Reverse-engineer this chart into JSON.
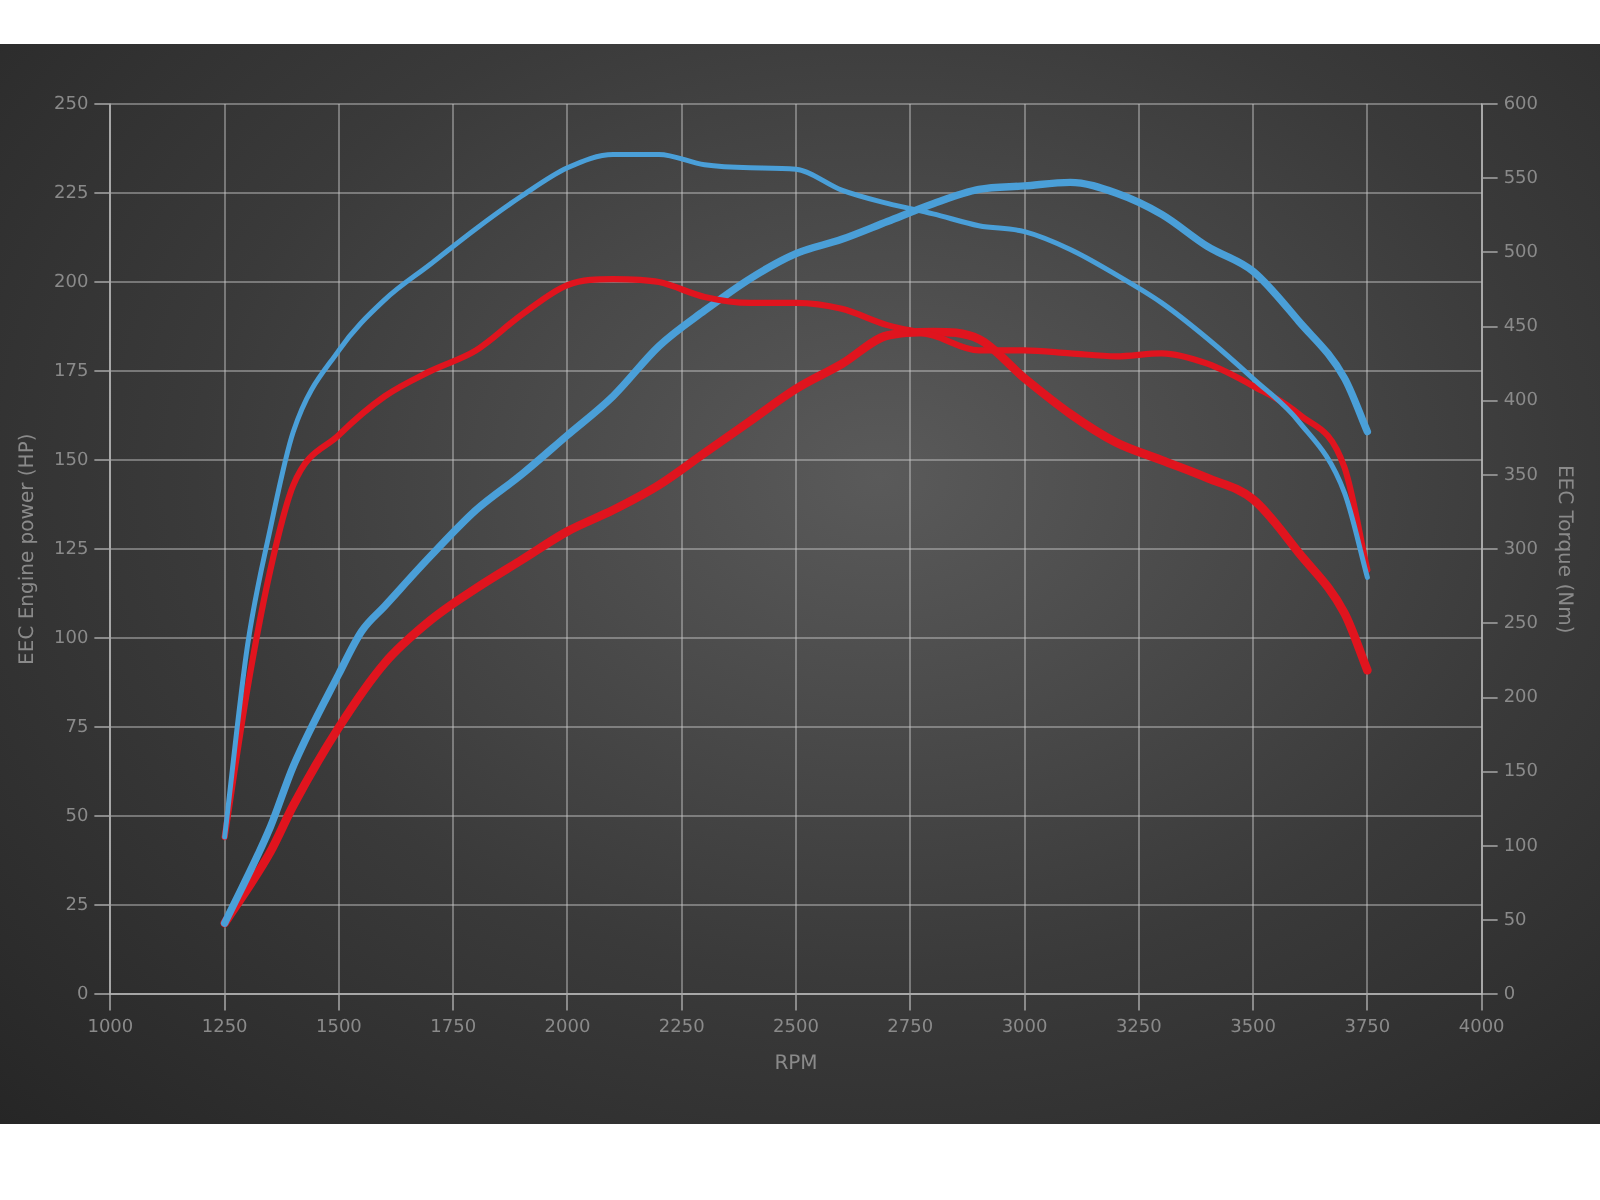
{
  "chart_data": {
    "type": "line",
    "xlabel": "RPM",
    "ylabel": "EEC Engine power (HP)",
    "y2label": "EEC Torque (Nm)",
    "xlim": [
      1000,
      4000
    ],
    "xticks": [
      1000,
      1250,
      1500,
      1750,
      2000,
      2250,
      2500,
      2750,
      3000,
      3250,
      3500,
      3750,
      4000
    ],
    "ylim": [
      0,
      250
    ],
    "yticks": [
      0,
      25,
      50,
      75,
      100,
      125,
      150,
      175,
      200,
      225,
      250
    ],
    "y2lim": [
      0,
      600
    ],
    "y2ticks": [
      0,
      50,
      100,
      150,
      200,
      250,
      300,
      350,
      400,
      450,
      500,
      550,
      600
    ],
    "grid": true,
    "legend": false,
    "marker": "none",
    "line_style": "solid",
    "series": [
      {
        "color": "#4a9fd8",
        "axis": "y2",
        "x": [
          1250,
          1300,
          1350,
          1400,
          1500,
          1600,
          1700,
          1800,
          1900,
          2000,
          2100,
          2200,
          2300,
          2400,
          2500,
          2600,
          2700,
          2800,
          2900,
          3000,
          3100,
          3200,
          3300,
          3400,
          3500,
          3600,
          3700,
          3750
        ],
        "values": [
          106,
          235,
          314,
          379,
          434,
          468,
          492,
          516,
          538,
          557,
          566,
          566,
          559,
          557,
          556,
          542,
          533,
          526,
          518,
          514,
          502,
          485,
          466,
          442,
          415,
          386,
          338,
          281
        ]
      },
      {
        "color": "#e0141e",
        "axis": "y2",
        "x": [
          1250,
          1300,
          1350,
          1400,
          1500,
          1600,
          1700,
          1800,
          1900,
          2000,
          2100,
          2200,
          2300,
          2400,
          2500,
          2600,
          2700,
          2800,
          2900,
          3000,
          3100,
          3200,
          3300,
          3400,
          3500,
          3600,
          3700,
          3750
        ],
        "values": [
          106,
          206,
          286,
          343,
          377,
          403,
          420,
          434,
          458,
          478,
          482,
          480,
          470,
          466,
          466,
          462,
          451,
          444,
          434,
          434,
          432,
          430,
          432,
          425,
          410,
          391,
          355,
          286
        ]
      },
      {
        "color": "#4a9fd8",
        "x": [
          1250,
          1350,
          1400,
          1500,
          1550,
          1600,
          1700,
          1800,
          1900,
          2000,
          2100,
          2200,
          2300,
          2400,
          2500,
          2600,
          2700,
          2800,
          2900,
          3000,
          3100,
          3200,
          3300,
          3400,
          3500,
          3600,
          3700,
          3750
        ],
        "values": [
          20,
          47,
          64,
          90,
          102,
          109,
          123,
          136,
          146,
          157,
          168,
          182,
          192,
          201,
          208,
          212,
          217,
          222,
          226,
          227,
          228,
          225,
          219,
          210,
          203,
          189,
          173,
          158
        ]
      },
      {
        "color": "#e0141e",
        "x": [
          1250,
          1350,
          1400,
          1500,
          1600,
          1700,
          1800,
          1900,
          2000,
          2100,
          2200,
          2300,
          2400,
          2500,
          2600,
          2700,
          2800,
          2900,
          3000,
          3100,
          3200,
          3300,
          3400,
          3500,
          3600,
          3700,
          3750
        ],
        "values": [
          20,
          40,
          53,
          75,
          93,
          105,
          114,
          122,
          130,
          136,
          143,
          152,
          161,
          170,
          177,
          185,
          186,
          184,
          173,
          163,
          155,
          150,
          145,
          139,
          124,
          107,
          91
        ]
      }
    ]
  }
}
